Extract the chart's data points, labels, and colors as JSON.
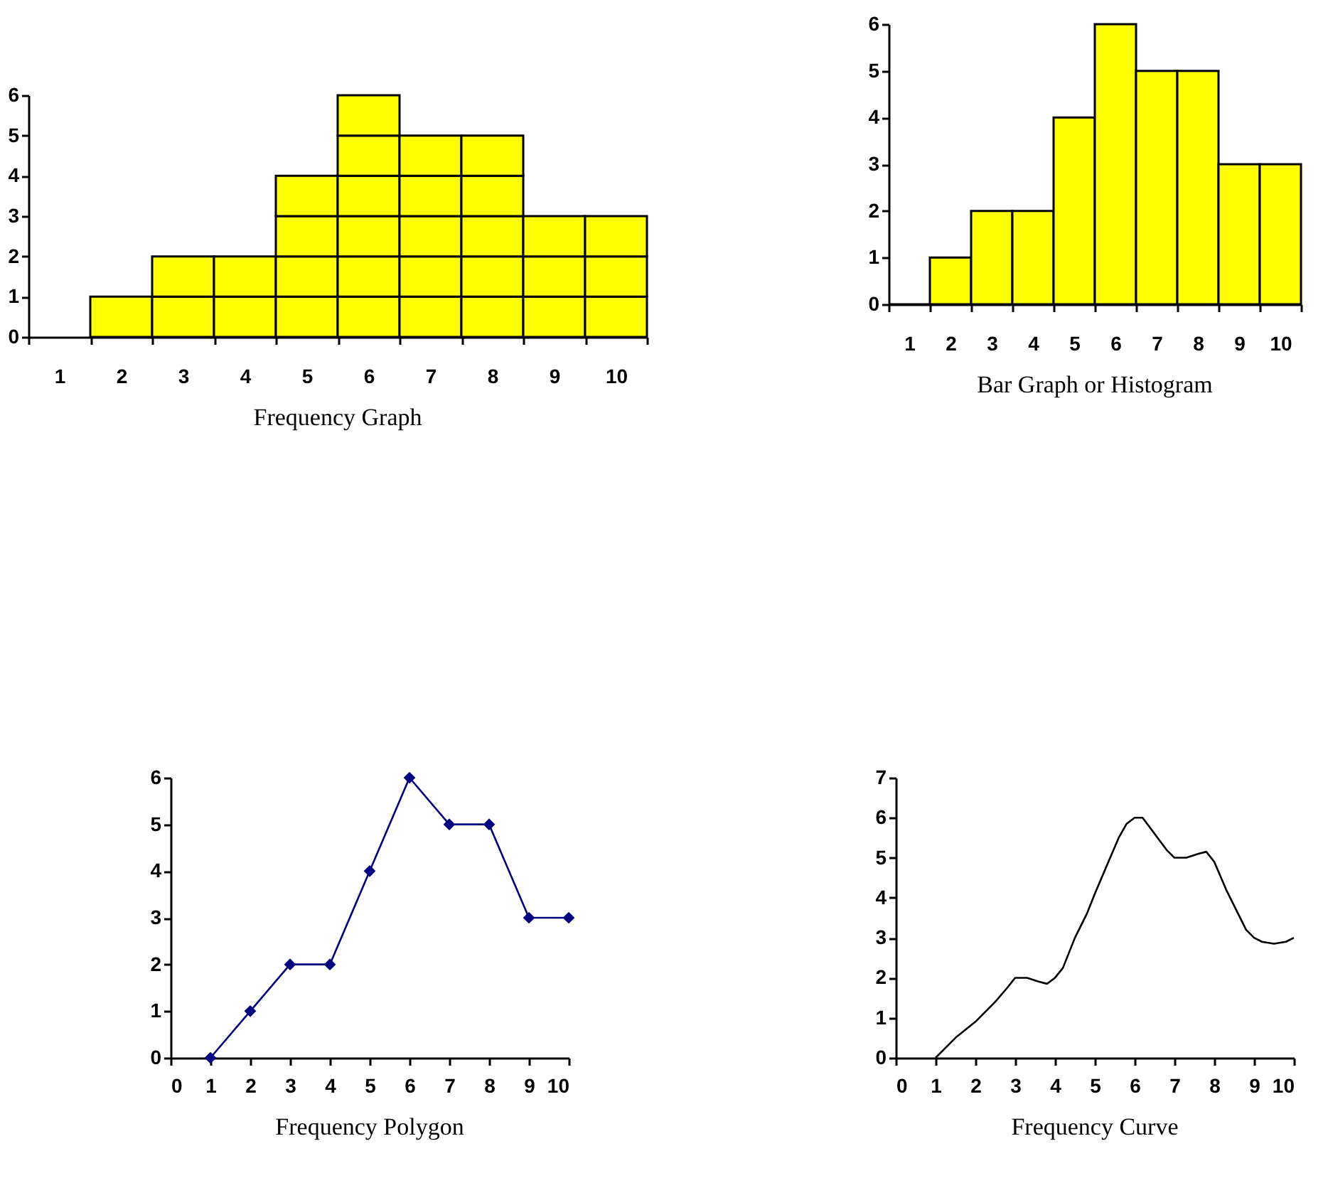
{
  "chart_data": [
    {
      "type": "bar",
      "title": "Frequency Graph",
      "stacked": true,
      "categories": [
        "1",
        "2",
        "3",
        "4",
        "5",
        "6",
        "7",
        "8",
        "9",
        "10"
      ],
      "ylim": [
        0,
        6
      ],
      "yticks": [
        0,
        1,
        2,
        3,
        4,
        5,
        6
      ],
      "series": [
        {
          "color": "#ffff00",
          "values": [
            null,
            1,
            1,
            1,
            1,
            1,
            1,
            1,
            1,
            1
          ]
        },
        {
          "color": "#ffff00",
          "values": [
            null,
            null,
            1,
            1,
            1,
            1,
            1,
            1,
            1,
            1
          ]
        },
        {
          "color": "#ffff00",
          "values": [
            null,
            null,
            null,
            null,
            1,
            1,
            1,
            1,
            1,
            1
          ]
        },
        {
          "color": "#ffff00",
          "values": [
            null,
            null,
            null,
            null,
            1,
            1,
            1,
            1,
            null,
            null
          ]
        },
        {
          "color": "#ffff00",
          "values": [
            null,
            null,
            null,
            null,
            null,
            1,
            1,
            1,
            null,
            null
          ]
        },
        {
          "color": "#ffff00",
          "values": [
            null,
            null,
            null,
            null,
            null,
            1,
            null,
            null,
            null,
            null
          ]
        }
      ]
    },
    {
      "type": "bar",
      "title": "Bar Graph or Histogram",
      "categories": [
        "1",
        "2",
        "3",
        "4",
        "5",
        "6",
        "7",
        "8",
        "9",
        "10"
      ],
      "ylim": [
        0,
        6
      ],
      "yticks": [
        0,
        1,
        2,
        3,
        4,
        5,
        6
      ],
      "series": [
        {
          "color": "#ffff00",
          "values": [
            0,
            1,
            2,
            2,
            4,
            6,
            5,
            5,
            3,
            3
          ]
        }
      ]
    },
    {
      "type": "line",
      "title": "Frequency Polygon",
      "marker": "diamond",
      "xlim": [
        0,
        10
      ],
      "xticks": [
        0,
        1,
        2,
        3,
        4,
        5,
        6,
        7,
        8,
        9,
        10
      ],
      "ylim": [
        0,
        6
      ],
      "yticks": [
        0,
        1,
        2,
        3,
        4,
        5,
        6
      ],
      "series": [
        {
          "color": "#000080",
          "x": [
            1,
            2,
            3,
            4,
            5,
            6,
            7,
            8,
            9,
            10
          ],
          "values": [
            0,
            1,
            2,
            2,
            4,
            6,
            5,
            5,
            3,
            3
          ]
        }
      ]
    },
    {
      "type": "line",
      "title": "Frequency Curve",
      "xlim": [
        0,
        10
      ],
      "xticks": [
        0,
        1,
        2,
        3,
        4,
        5,
        6,
        7,
        8,
        9,
        10
      ],
      "ylim": [
        0,
        7
      ],
      "yticks": [
        0,
        1,
        2,
        3,
        4,
        5,
        6,
        7
      ],
      "series": [
        {
          "color": "#000000",
          "x": [
            1,
            1.5,
            2,
            2.5,
            2.8,
            3,
            3.3,
            3.6,
            3.8,
            4,
            4.2,
            4.5,
            4.8,
            5,
            5.3,
            5.6,
            5.8,
            6,
            6.2,
            6.5,
            6.8,
            7,
            7.3,
            7.6,
            7.8,
            8,
            8.3,
            8.6,
            8.8,
            9,
            9.2,
            9.5,
            9.8,
            10
          ],
          "values": [
            0,
            0.5,
            0.9,
            1.4,
            1.75,
            2.0,
            2.0,
            1.9,
            1.85,
            2.0,
            2.25,
            3.0,
            3.6,
            4.1,
            4.8,
            5.5,
            5.85,
            6.0,
            6.0,
            5.6,
            5.2,
            5.0,
            5.0,
            5.1,
            5.15,
            4.9,
            4.2,
            3.6,
            3.2,
            3.0,
            2.9,
            2.85,
            2.9,
            3.0
          ]
        }
      ]
    }
  ]
}
